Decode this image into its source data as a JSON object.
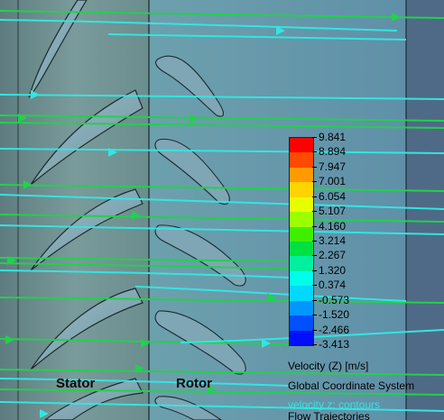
{
  "legend": {
    "values": [
      "9.841",
      "8.894",
      "7.947",
      "7.001",
      "6.054",
      "5.107",
      "4.160",
      "3.214",
      "2.267",
      "1.320",
      "0.374",
      "-0.573",
      "-1.520",
      "-2.466",
      "-3.413"
    ],
    "colors": [
      "#ff0000",
      "#ff4a00",
      "#ff9a00",
      "#ffd400",
      "#e6ff00",
      "#9cff00",
      "#3ef000",
      "#00e040",
      "#00f0a0",
      "#00ffe8",
      "#00d8ff",
      "#0098ff",
      "#0050ff",
      "#0010ff"
    ],
    "quantity_label": "Velocity (Z) [m/s]"
  },
  "captions": {
    "coordinate_system": "Global Coordinate System",
    "plot_type": "velocity z: contours",
    "flow": "Flow Trajectories"
  },
  "regions": {
    "stator": "Stator",
    "rotor": "Rotor"
  },
  "colors": {
    "stator_bg": "#6b8a8c",
    "rotor_bg": "#6e9aa6",
    "right_strip": "#4f6a86",
    "blade_fill": "#86a9b5",
    "streamline_green": "#22d14c",
    "streamline_cyan": "#33e5e0"
  }
}
